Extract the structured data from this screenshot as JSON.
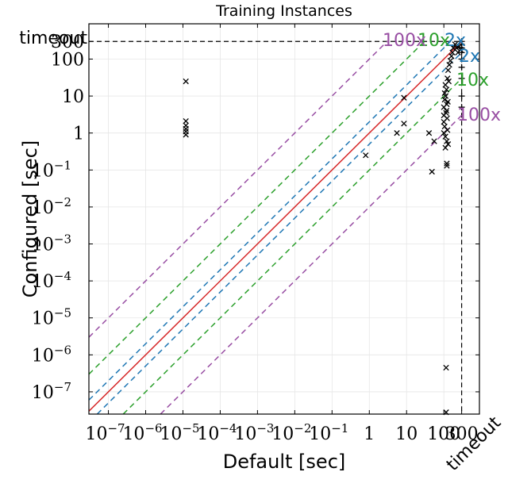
{
  "chart_data": {
    "type": "scatter",
    "title": "Training Instances",
    "xlabel": "Default [sec]",
    "ylabel": "Configured [sec]",
    "scale": "log",
    "xlim": [
      3e-08,
      900
    ],
    "ylim": [
      2.5e-08,
      900
    ],
    "timeout_value": 300,
    "timeout_label": "timeout",
    "x_ticks": [
      {
        "value": 1e-07,
        "base": "10",
        "exp": "−7"
      },
      {
        "value": 1e-06,
        "base": "10",
        "exp": "−6"
      },
      {
        "value": 1e-05,
        "base": "10",
        "exp": "−5"
      },
      {
        "value": 0.0001,
        "base": "10",
        "exp": "−4"
      },
      {
        "value": 0.001,
        "base": "10",
        "exp": "−3"
      },
      {
        "value": 0.01,
        "base": "10",
        "exp": "−2"
      },
      {
        "value": 0.1,
        "base": "10",
        "exp": "−1"
      },
      {
        "value": 1,
        "base": "1",
        "exp": ""
      },
      {
        "value": 10,
        "base": "10",
        "exp": ""
      },
      {
        "value": 100,
        "base": "100",
        "exp": ""
      },
      {
        "value": 300,
        "base": "300",
        "exp": ""
      }
    ],
    "y_ticks": [
      {
        "value": 1e-07,
        "base": "10",
        "exp": "−7"
      },
      {
        "value": 1e-06,
        "base": "10",
        "exp": "−6"
      },
      {
        "value": 1e-05,
        "base": "10",
        "exp": "−5"
      },
      {
        "value": 0.0001,
        "base": "10",
        "exp": "−4"
      },
      {
        "value": 0.001,
        "base": "10",
        "exp": "−3"
      },
      {
        "value": 0.01,
        "base": "10",
        "exp": "−2"
      },
      {
        "value": 0.1,
        "base": "10",
        "exp": "−1"
      },
      {
        "value": 1,
        "base": "1",
        "exp": ""
      },
      {
        "value": 10,
        "base": "10",
        "exp": ""
      },
      {
        "value": 100,
        "base": "100",
        "exp": ""
      },
      {
        "value": 300,
        "base": "300",
        "exp": ""
      }
    ],
    "reference_lines": [
      {
        "factor": 1,
        "style": "solid",
        "color": "#d62728"
      },
      {
        "factor": 2,
        "style": "dashed",
        "color": "#1f77b4",
        "label": "2x"
      },
      {
        "factor": 10,
        "style": "dashed",
        "color": "#2ca02c",
        "label": "10x"
      },
      {
        "factor": 100,
        "style": "dashed",
        "color": "#984ea3",
        "label": "100x"
      }
    ],
    "points_x_marker": [
      [
        1.2e-05,
        25
      ],
      [
        1.2e-05,
        2.1
      ],
      [
        1.2e-05,
        1.6
      ],
      [
        1.2e-05,
        1.3
      ],
      [
        1.2e-05,
        1.1
      ],
      [
        1.2e-05,
        0.9
      ],
      [
        0.8,
        0.25
      ],
      [
        5.5,
        1.0
      ],
      [
        8.5,
        9
      ],
      [
        8.5,
        1.8
      ],
      [
        40,
        1.0
      ],
      [
        55,
        0.6
      ],
      [
        48,
        0.09
      ],
      [
        120,
        0.15
      ],
      [
        120,
        0.13
      ],
      [
        110,
        0.4
      ],
      [
        130,
        0.5
      ],
      [
        115,
        4.5e-07
      ],
      [
        115,
        2.8e-08
      ],
      [
        100,
        1
      ],
      [
        100,
        2
      ],
      [
        100,
        3
      ],
      [
        100,
        5
      ],
      [
        105,
        8
      ],
      [
        105,
        12
      ],
      [
        110,
        20
      ],
      [
        110,
        0.8
      ],
      [
        105,
        1.5
      ],
      [
        115,
        3.5
      ],
      [
        120,
        6
      ],
      [
        112,
        10
      ],
      [
        118,
        15
      ],
      [
        125,
        30
      ],
      [
        130,
        50
      ],
      [
        140,
        70
      ],
      [
        150,
        90
      ],
      [
        160,
        120
      ],
      [
        170,
        150
      ],
      [
        180,
        200
      ],
      [
        200,
        250
      ],
      [
        220,
        200
      ],
      [
        240,
        150
      ],
      [
        260,
        220
      ],
      [
        280,
        180
      ],
      [
        120,
        0.6
      ],
      [
        125,
        1.2
      ],
      [
        122,
        2.5
      ],
      [
        118,
        4
      ],
      [
        128,
        7
      ],
      [
        135,
        25
      ]
    ],
    "points_plus_marker": [
      [
        300,
        300
      ],
      [
        300,
        250
      ],
      [
        300,
        200
      ],
      [
        300,
        150
      ],
      [
        300,
        100
      ],
      [
        300,
        60
      ],
      [
        300,
        30
      ],
      [
        300,
        10
      ],
      [
        300,
        5
      ]
    ],
    "grid": true
  }
}
